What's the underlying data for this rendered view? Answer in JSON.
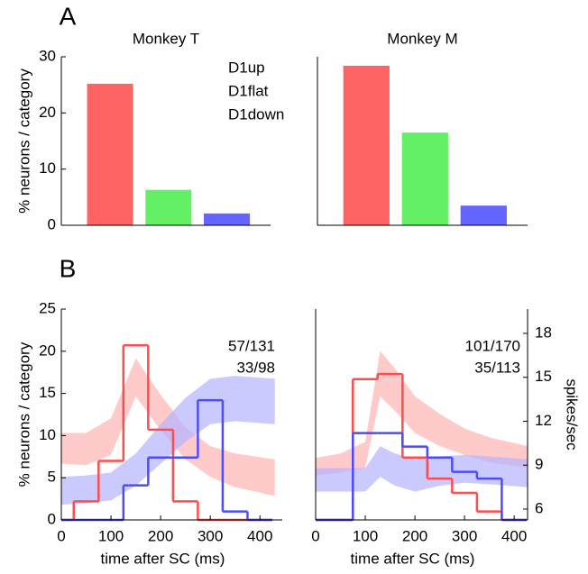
{
  "chart_data": [
    {
      "type": "bar",
      "panel_label": "A",
      "title": "Monkey T",
      "y_label": "% neurons / category",
      "series": [
        {
          "name": "D1up",
          "color": "#ff6464",
          "values": [
            25.2
          ]
        },
        {
          "name": "D1flat",
          "color": "#64f064",
          "values": [
            6.3
          ]
        },
        {
          "name": "D1down",
          "color": "#6464ff",
          "values": [
            2.1
          ]
        }
      ],
      "ylim": [
        0,
        30
      ],
      "yticks": [
        0,
        10,
        20,
        30
      ]
    },
    {
      "type": "bar",
      "title": "Monkey M",
      "series": [
        {
          "color": "#ff6464",
          "values": [
            28.4
          ]
        },
        {
          "color": "#64f064",
          "values": [
            16.5
          ]
        },
        {
          "color": "#6464ff",
          "values": [
            3.5
          ]
        }
      ],
      "ylim": [
        0,
        30
      ]
    },
    {
      "type": "histogram",
      "panel_label": "B",
      "x_label": "time after SC (ms)",
      "y_label": "% neurons / category",
      "bins": [
        25,
        75,
        125,
        175,
        225,
        275,
        325,
        375,
        425
      ],
      "series": [
        {
          "color": "#ff4c4c",
          "values": [
            2.2,
            7,
            20.7,
            10.7,
            2.2,
            0,
            0,
            0
          ]
        },
        {
          "color": "#4c4cff",
          "values": [
            0,
            0,
            4.1,
            7.4,
            7.4,
            14.2,
            1,
            0
          ]
        }
      ],
      "bands": [
        {
          "color": "#ffb4b4",
          "x": [
            0,
            50,
            100,
            150,
            200,
            250,
            300,
            350,
            430
          ],
          "upper": [
            11.2,
            11.2,
            12.2,
            16.3,
            13.8,
            11.6,
            10.3,
            9.8,
            9.4
          ],
          "lower": [
            9.1,
            9.0,
            9.7,
            13.7,
            11.4,
            9.4,
            8.2,
            7.5,
            6.9
          ]
        },
        {
          "color": "#b4b4ff",
          "x": [
            0,
            50,
            100,
            150,
            200,
            250,
            300,
            350,
            430
          ],
          "upper": [
            8.2,
            8.3,
            8.5,
            9.8,
            11.8,
            13.6,
            14.9,
            15.1,
            14.9
          ],
          "lower": [
            6.3,
            6.4,
            6.6,
            7.6,
            9.1,
            10.6,
            11.8,
            12.0,
            11.8
          ]
        }
      ],
      "annotations": [
        {
          "text": "57/131",
          "color": "#ff5050"
        },
        {
          "text": "33/98",
          "color": "#5050ff"
        }
      ],
      "xlim": [
        0,
        445
      ],
      "xticks": [
        0,
        100,
        200,
        300,
        400
      ],
      "ylim": [
        0,
        25
      ],
      "yticks": [
        0,
        5,
        10,
        15,
        20,
        25
      ],
      "y2lim": [
        5.26,
        19.66
      ]
    },
    {
      "type": "histogram",
      "x_label": "time after SC (ms)",
      "y2_label": "spikes/sec",
      "bins": [
        25,
        75,
        125,
        175,
        225,
        275,
        325,
        375,
        425
      ],
      "series": [
        {
          "color": "#ff4c4c",
          "values": [
            0,
            16.7,
            17.3,
            7.4,
            4.9,
            3.2,
            1,
            0
          ]
        },
        {
          "color": "#4c4cff",
          "values": [
            0,
            10.3,
            10.3,
            8.7,
            7.4,
            5.7,
            4.9,
            0
          ]
        }
      ],
      "bands": [
        {
          "color": "#ffb4b4",
          "x": [
            0,
            50,
            100,
            130,
            160,
            200,
            250,
            300,
            350,
            427
          ],
          "upper": [
            9.5,
            9.8,
            10.6,
            16.8,
            15.6,
            13.7,
            12.5,
            11.5,
            10.9,
            10.3
          ],
          "lower": [
            8.3,
            8.5,
            8.8,
            13.7,
            12.7,
            11.2,
            10.3,
            9.7,
            9.2,
            8.8
          ]
        },
        {
          "color": "#b4b4ff",
          "x": [
            0,
            50,
            100,
            130,
            160,
            200,
            250,
            300,
            350,
            427
          ],
          "upper": [
            8.8,
            8.8,
            8.8,
            10.3,
            9.8,
            9.4,
            9.6,
            9.7,
            9.6,
            9.4
          ],
          "lower": [
            7.2,
            7.2,
            7.2,
            8.2,
            7.6,
            7.2,
            7.6,
            7.8,
            7.7,
            7.5
          ]
        }
      ],
      "annotations": [
        {
          "text": "101/170",
          "color": "#ff5050"
        },
        {
          "text": "35/113",
          "color": "#5050ff"
        }
      ],
      "xlim": [
        0,
        427
      ],
      "xticks": [
        0,
        100,
        200,
        300,
        400
      ],
      "ylim": [
        0,
        25
      ],
      "y2lim": [
        5.26,
        19.66
      ],
      "y2ticks": [
        6,
        9,
        12,
        15,
        18
      ]
    }
  ]
}
